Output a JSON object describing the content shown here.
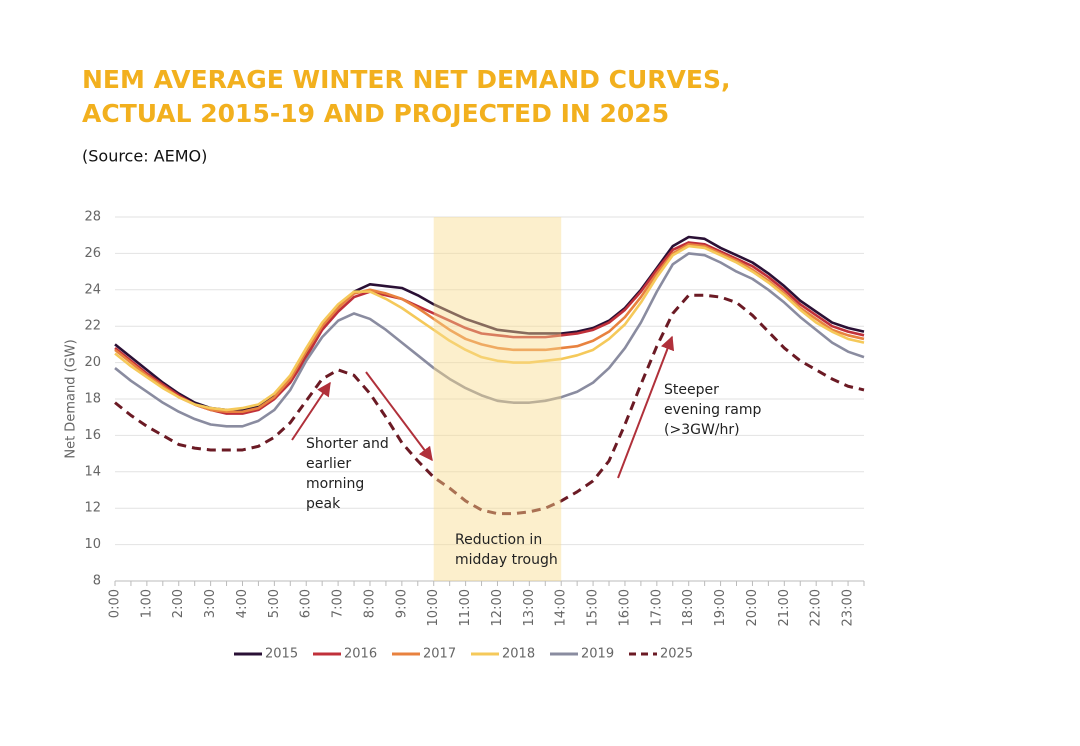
{
  "chart_data": {
    "type": "line",
    "title": [
      "NEM AVERAGE WINTER NET DEMAND CURVES,",
      "ACTUAL 2015-19 AND PROJECTED IN 2025"
    ],
    "subtitle": "(Source: AEMO)",
    "y_label": "Net Demand (GW)",
    "categories": [
      "0:00",
      null,
      "1:00",
      null,
      "2:00",
      null,
      "3:00",
      null,
      "4:00",
      null,
      "5:00",
      null,
      "6:00",
      null,
      "7:00",
      null,
      "8:00",
      null,
      "9:00",
      null,
      "10:00",
      null,
      "11:00",
      null,
      "12:00",
      null,
      "13:00",
      null,
      "14:00",
      null,
      "15:00",
      null,
      "16:00",
      null,
      "17:00",
      null,
      "18:00",
      null,
      "19:00",
      null,
      "20:00",
      null,
      "21:00",
      null,
      "22:00",
      null,
      "23:00",
      null
    ],
    "ylim": [
      8,
      28
    ],
    "yticks": [
      8,
      10,
      12,
      14,
      16,
      18,
      20,
      22,
      24,
      26,
      28
    ],
    "grid": true,
    "legend": "bottom",
    "highlight_x": [
      "10:00",
      "14:00"
    ],
    "series": [
      {
        "name": "2015",
        "color": "#2a1035",
        "dashed": false,
        "values": [
          21.0,
          20.3,
          19.6,
          18.9,
          18.3,
          17.8,
          17.5,
          17.4,
          17.4,
          17.6,
          18.2,
          19.0,
          20.4,
          21.9,
          23.0,
          23.9,
          24.3,
          24.2,
          24.1,
          23.7,
          23.2,
          22.8,
          22.4,
          22.1,
          21.8,
          21.7,
          21.6,
          21.6,
          21.6,
          21.7,
          21.9,
          22.3,
          23.0,
          24.0,
          25.2,
          26.4,
          26.9,
          26.8,
          26.3,
          25.9,
          25.5,
          24.9,
          24.2,
          23.4,
          22.8,
          22.2,
          21.9,
          21.7
        ]
      },
      {
        "name": "2016",
        "color": "#c0303a",
        "dashed": false,
        "values": [
          20.8,
          20.1,
          19.4,
          18.8,
          18.2,
          17.7,
          17.4,
          17.2,
          17.2,
          17.4,
          18.0,
          18.9,
          20.3,
          21.8,
          22.8,
          23.6,
          23.9,
          23.7,
          23.5,
          23.1,
          22.7,
          22.3,
          21.9,
          21.6,
          21.5,
          21.4,
          21.4,
          21.4,
          21.5,
          21.6,
          21.8,
          22.2,
          22.9,
          23.9,
          25.1,
          26.2,
          26.6,
          26.5,
          26.1,
          25.7,
          25.3,
          24.7,
          24.0,
          23.2,
          22.6,
          22.0,
          21.7,
          21.5
        ]
      },
      {
        "name": "2017",
        "color": "#e8823f",
        "dashed": false,
        "values": [
          20.7,
          20.0,
          19.3,
          18.7,
          18.1,
          17.7,
          17.4,
          17.3,
          17.3,
          17.5,
          18.1,
          19.1,
          20.6,
          22.0,
          23.0,
          23.8,
          24.0,
          23.8,
          23.5,
          23.0,
          22.4,
          21.8,
          21.3,
          21.0,
          20.8,
          20.7,
          20.7,
          20.7,
          20.8,
          20.9,
          21.2,
          21.7,
          22.5,
          23.6,
          24.9,
          26.0,
          26.5,
          26.4,
          26.0,
          25.6,
          25.1,
          24.5,
          23.8,
          23.0,
          22.4,
          21.8,
          21.5,
          21.3
        ]
      },
      {
        "name": "2018",
        "color": "#f5c95a",
        "dashed": false,
        "values": [
          20.5,
          19.8,
          19.2,
          18.6,
          18.1,
          17.7,
          17.5,
          17.4,
          17.5,
          17.7,
          18.3,
          19.3,
          20.8,
          22.2,
          23.2,
          23.9,
          23.9,
          23.5,
          23.0,
          22.4,
          21.8,
          21.2,
          20.7,
          20.3,
          20.1,
          20.0,
          20.0,
          20.1,
          20.2,
          20.4,
          20.7,
          21.3,
          22.1,
          23.3,
          24.7,
          25.9,
          26.4,
          26.3,
          25.9,
          25.5,
          25.0,
          24.4,
          23.7,
          22.9,
          22.2,
          21.7,
          21.3,
          21.1
        ]
      },
      {
        "name": "2019",
        "color": "#8a8ca0",
        "dashed": false,
        "values": [
          19.7,
          19.0,
          18.4,
          17.8,
          17.3,
          16.9,
          16.6,
          16.5,
          16.5,
          16.8,
          17.4,
          18.5,
          20.1,
          21.4,
          22.3,
          22.7,
          22.4,
          21.8,
          21.1,
          20.4,
          19.7,
          19.1,
          18.6,
          18.2,
          17.9,
          17.8,
          17.8,
          17.9,
          18.1,
          18.4,
          18.9,
          19.7,
          20.8,
          22.2,
          23.9,
          25.4,
          26.0,
          25.9,
          25.5,
          25.0,
          24.6,
          24.0,
          23.3,
          22.5,
          21.8,
          21.1,
          20.6,
          20.3
        ]
      },
      {
        "name": "2025",
        "color": "#6b1a24",
        "dashed": true,
        "values": [
          17.8,
          17.1,
          16.5,
          16.0,
          15.5,
          15.3,
          15.2,
          15.2,
          15.2,
          15.4,
          15.9,
          16.7,
          17.9,
          19.1,
          19.6,
          19.3,
          18.3,
          17.0,
          15.6,
          14.6,
          13.7,
          13.1,
          12.4,
          11.9,
          11.7,
          11.7,
          11.8,
          12.0,
          12.4,
          12.9,
          13.5,
          14.6,
          16.6,
          18.8,
          20.9,
          22.7,
          23.7,
          23.7,
          23.6,
          23.3,
          22.6,
          21.7,
          20.8,
          20.1,
          19.6,
          19.1,
          18.7,
          18.5
        ]
      }
    ],
    "annotations": [
      {
        "text": [
          "Shorter and",
          "earlier",
          "morning",
          "peak"
        ]
      },
      {
        "text": [
          "Reduction in",
          "midday trough"
        ]
      },
      {
        "text": [
          "Steeper",
          "evening ramp",
          "(>3GW/hr)"
        ]
      }
    ]
  }
}
